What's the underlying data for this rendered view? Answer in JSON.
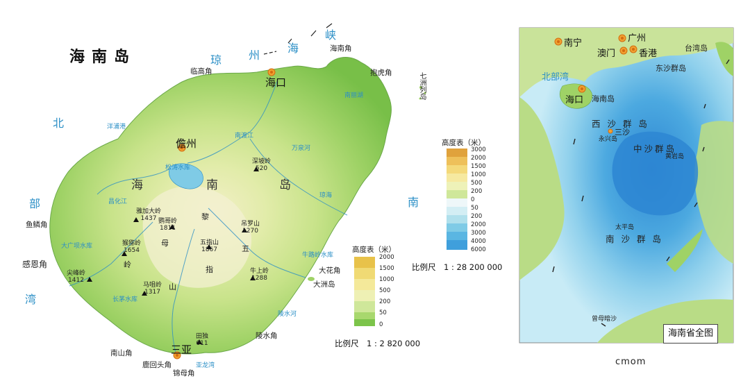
{
  "main_map": {
    "title": "海南岛",
    "cities": [
      {
        "id": "haikou",
        "label": "海口"
      },
      {
        "id": "danzhou",
        "label": "儋州"
      },
      {
        "id": "sanya",
        "label": "三亚"
      }
    ],
    "capes": {
      "linggao": "临高角",
      "haikou_jiao": "海南角",
      "baohu": "抱虎角",
      "yulin": "鱼鳞角",
      "ganen": "感恩角",
      "nanshan": "南山角",
      "luhuitou": "鹿回头角",
      "jinmu": "锦母角",
      "lingshui": "陵水角",
      "dahua": "大花角",
      "dazhou": "大洲岛",
      "qizhou": "七洲列岛"
    },
    "island_name_chars": [
      "海",
      "南",
      "岛"
    ],
    "mountain_chars": [
      "黎",
      "母",
      "岭"
    ],
    "mountain2_chars": [
      "五",
      "指",
      "山"
    ],
    "seas": {
      "qiongzhou_chars": [
        "琼",
        "州",
        "海",
        "峡"
      ],
      "beibu_chars": [
        "北",
        "部",
        "湾"
      ],
      "nanhai_chars": [
        "南"
      ]
    },
    "peaks": [
      {
        "name": "鹦哥岭",
        "elev": "1811"
      },
      {
        "name": "五指山",
        "elev": "1867"
      },
      {
        "name": "猴猕岭",
        "elev": "1654"
      },
      {
        "name": "尖峰岭",
        "elev": "1412"
      },
      {
        "name": "马咀岭",
        "elev": "1317"
      },
      {
        "name": "吊罗山",
        "elev": "1270"
      },
      {
        "name": "牛上岭",
        "elev": "1288"
      },
      {
        "name": "雅加大岭",
        "elev": "1437"
      },
      {
        "name": "深坡岭",
        "elev": "520"
      },
      {
        "name": "田独",
        "elev": "611"
      }
    ],
    "rivers": [
      "松涛水库",
      "南渡江",
      "万泉河",
      "昌化江",
      "大广坝水库",
      "长茅水库",
      "洋浦港",
      "陵水河",
      "南丽湖",
      "琼海",
      "牛路岭水库",
      "亚龙湾"
    ],
    "legend": {
      "title": "高度表（米）",
      "levels": [
        "2000",
        "1500",
        "1000",
        "500",
        "200",
        "50",
        "0"
      ],
      "colors": [
        "#e8c24a",
        "#f0da74",
        "#f4e99a",
        "#eef0b4",
        "#cfe79a",
        "#a8d86e",
        "#7cc44a"
      ]
    },
    "scale": "比例尺　1 : 2 820 000"
  },
  "inset_map": {
    "cities": [
      {
        "id": "nanning",
        "label": "南宁"
      },
      {
        "id": "guangzhou",
        "label": "广州"
      },
      {
        "id": "macau",
        "label": "澳门"
      },
      {
        "id": "hongkong",
        "label": "香港"
      },
      {
        "id": "haikou2",
        "label": "海口"
      },
      {
        "id": "sansha",
        "label": "三沙"
      }
    ],
    "labels": {
      "taiwan": "台湾岛",
      "hainan": "海南岛",
      "dongsha": "东沙群岛",
      "xisha": "西 沙 群 岛",
      "yongxing": "永兴岛",
      "zhongsha": "中沙群岛",
      "huangyan": "黄岩岛",
      "taiping": "太平岛",
      "nansha": "南 沙 群 岛",
      "zengmu": "曾母暗沙",
      "beibuwan": "北部湾"
    },
    "legend": {
      "title": "高度表（米）",
      "levels": [
        "3000",
        "2000",
        "1500",
        "1000",
        "500",
        "200",
        "0",
        "50",
        "200",
        "2000",
        "3000",
        "4000",
        "6000"
      ],
      "colors": [
        "#e0a23c",
        "#eec05a",
        "#f4d97a",
        "#f6e9a0",
        "#eef2b8",
        "#cfe79a",
        "#eef7f9",
        "#d3eef4",
        "#b0e0ec",
        "#7fcbe6",
        "#5ab6e2",
        "#3f9fdc",
        "#2f84cf"
      ]
    },
    "scale": "比例尺　1 : 28 200 000",
    "title": "海南省全图"
  },
  "watermark": "cmom"
}
